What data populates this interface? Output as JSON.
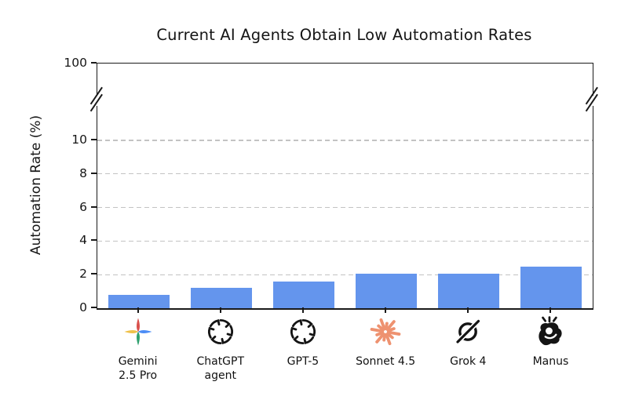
{
  "chart_data": {
    "type": "bar",
    "title": "Current AI Agents Obtain Low Automation Rates",
    "xlabel": "",
    "ylabel": "Automation Rate (%)",
    "categories": [
      "Gemini 2.5 Pro",
      "ChatGPT agent",
      "GPT-5",
      "Sonnet 4.5",
      "Grok 4",
      "Manus"
    ],
    "tick_labels": [
      "Gemini\n2.5 Pro",
      "ChatGPT\nagent",
      "GPT-5",
      "Sonnet 4.5",
      "Grok 4",
      "Manus"
    ],
    "values": [
      0.8,
      1.2,
      1.6,
      2.05,
      2.05,
      2.5
    ],
    "bar_color": "#6495ED",
    "grid": {
      "style": "dashed",
      "color": "#c3c3c3",
      "lines_at": [
        2,
        4,
        6,
        8,
        10
      ]
    },
    "y_axis": {
      "ticks_linear": [
        0,
        2,
        4,
        6,
        8,
        10
      ],
      "tick_top": 100,
      "axis_break_between": [
        10,
        100
      ],
      "ylim": [
        0,
        100
      ]
    },
    "legend": "none",
    "icons": [
      {
        "name": "gemini-sparkle-icon",
        "colors": {
          "top": "#D9504C",
          "right": "#4C8DF6",
          "bottom": "#2FA06E",
          "left": "#EFC14A"
        }
      },
      {
        "name": "openai-icon",
        "color": "#141414"
      },
      {
        "name": "openai-icon",
        "color": "#141414"
      },
      {
        "name": "claude-starburst-icon",
        "color": "#EE9270"
      },
      {
        "name": "grok-icon",
        "color": "#141414"
      },
      {
        "name": "manus-hand-icon",
        "color": "#141414"
      }
    ]
  }
}
